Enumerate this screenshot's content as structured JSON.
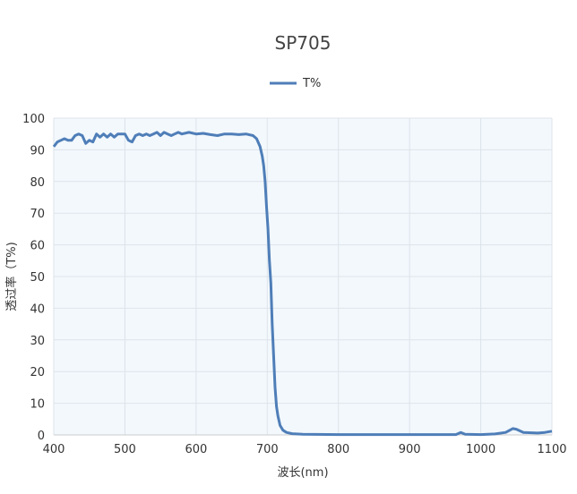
{
  "chart_data": {
    "type": "line",
    "title": "SP705",
    "xlabel": "波长(nm)",
    "ylabel": "透过率（T%)",
    "xlim": [
      400,
      1100
    ],
    "ylim": [
      0,
      100
    ],
    "xticks": [
      400,
      500,
      600,
      700,
      800,
      900,
      1000,
      1100
    ],
    "yticks": [
      0,
      10,
      20,
      30,
      40,
      50,
      60,
      70,
      80,
      90,
      100
    ],
    "grid": true,
    "legend_position": "top",
    "colors": {
      "line": "#4f7eb8",
      "plot_bg": "#f2f8fc",
      "grid": "#dde3ea"
    },
    "series": [
      {
        "name": "T%",
        "x": [
          400,
          405,
          410,
          415,
          420,
          425,
          430,
          435,
          440,
          445,
          450,
          455,
          460,
          465,
          470,
          475,
          480,
          485,
          490,
          495,
          500,
          505,
          510,
          515,
          520,
          525,
          530,
          535,
          540,
          545,
          550,
          555,
          560,
          565,
          570,
          575,
          580,
          590,
          600,
          610,
          620,
          630,
          640,
          650,
          660,
          670,
          680,
          685,
          690,
          693,
          695,
          697,
          699,
          701,
          703,
          705,
          707,
          709,
          711,
          713,
          715,
          718,
          722,
          727,
          735,
          750,
          800,
          900,
          965,
          972,
          978,
          1000,
          1020,
          1035,
          1045,
          1050,
          1060,
          1080,
          1090,
          1100
        ],
        "y": [
          91,
          92.5,
          93,
          93.5,
          93,
          93,
          94.5,
          95,
          94.5,
          92,
          93,
          92.5,
          95,
          94,
          95,
          94,
          95,
          94,
          95,
          95,
          95,
          93,
          92.5,
          94.5,
          95,
          94.5,
          95,
          94.5,
          95,
          95.5,
          94.5,
          95.5,
          95,
          94.5,
          95,
          95.5,
          95,
          95.5,
          95,
          95.2,
          94.8,
          94.5,
          95,
          95,
          94.8,
          95,
          94.5,
          93.5,
          91,
          88,
          85,
          80,
          72,
          65,
          55,
          48,
          35,
          25,
          15,
          9,
          6,
          3,
          1.5,
          0.8,
          0.4,
          0.2,
          0.1,
          0.1,
          0.1,
          0.8,
          0.2,
          0.1,
          0.3,
          0.8,
          2,
          1.8,
          0.8,
          0.6,
          0.8,
          1.2
        ]
      }
    ]
  }
}
